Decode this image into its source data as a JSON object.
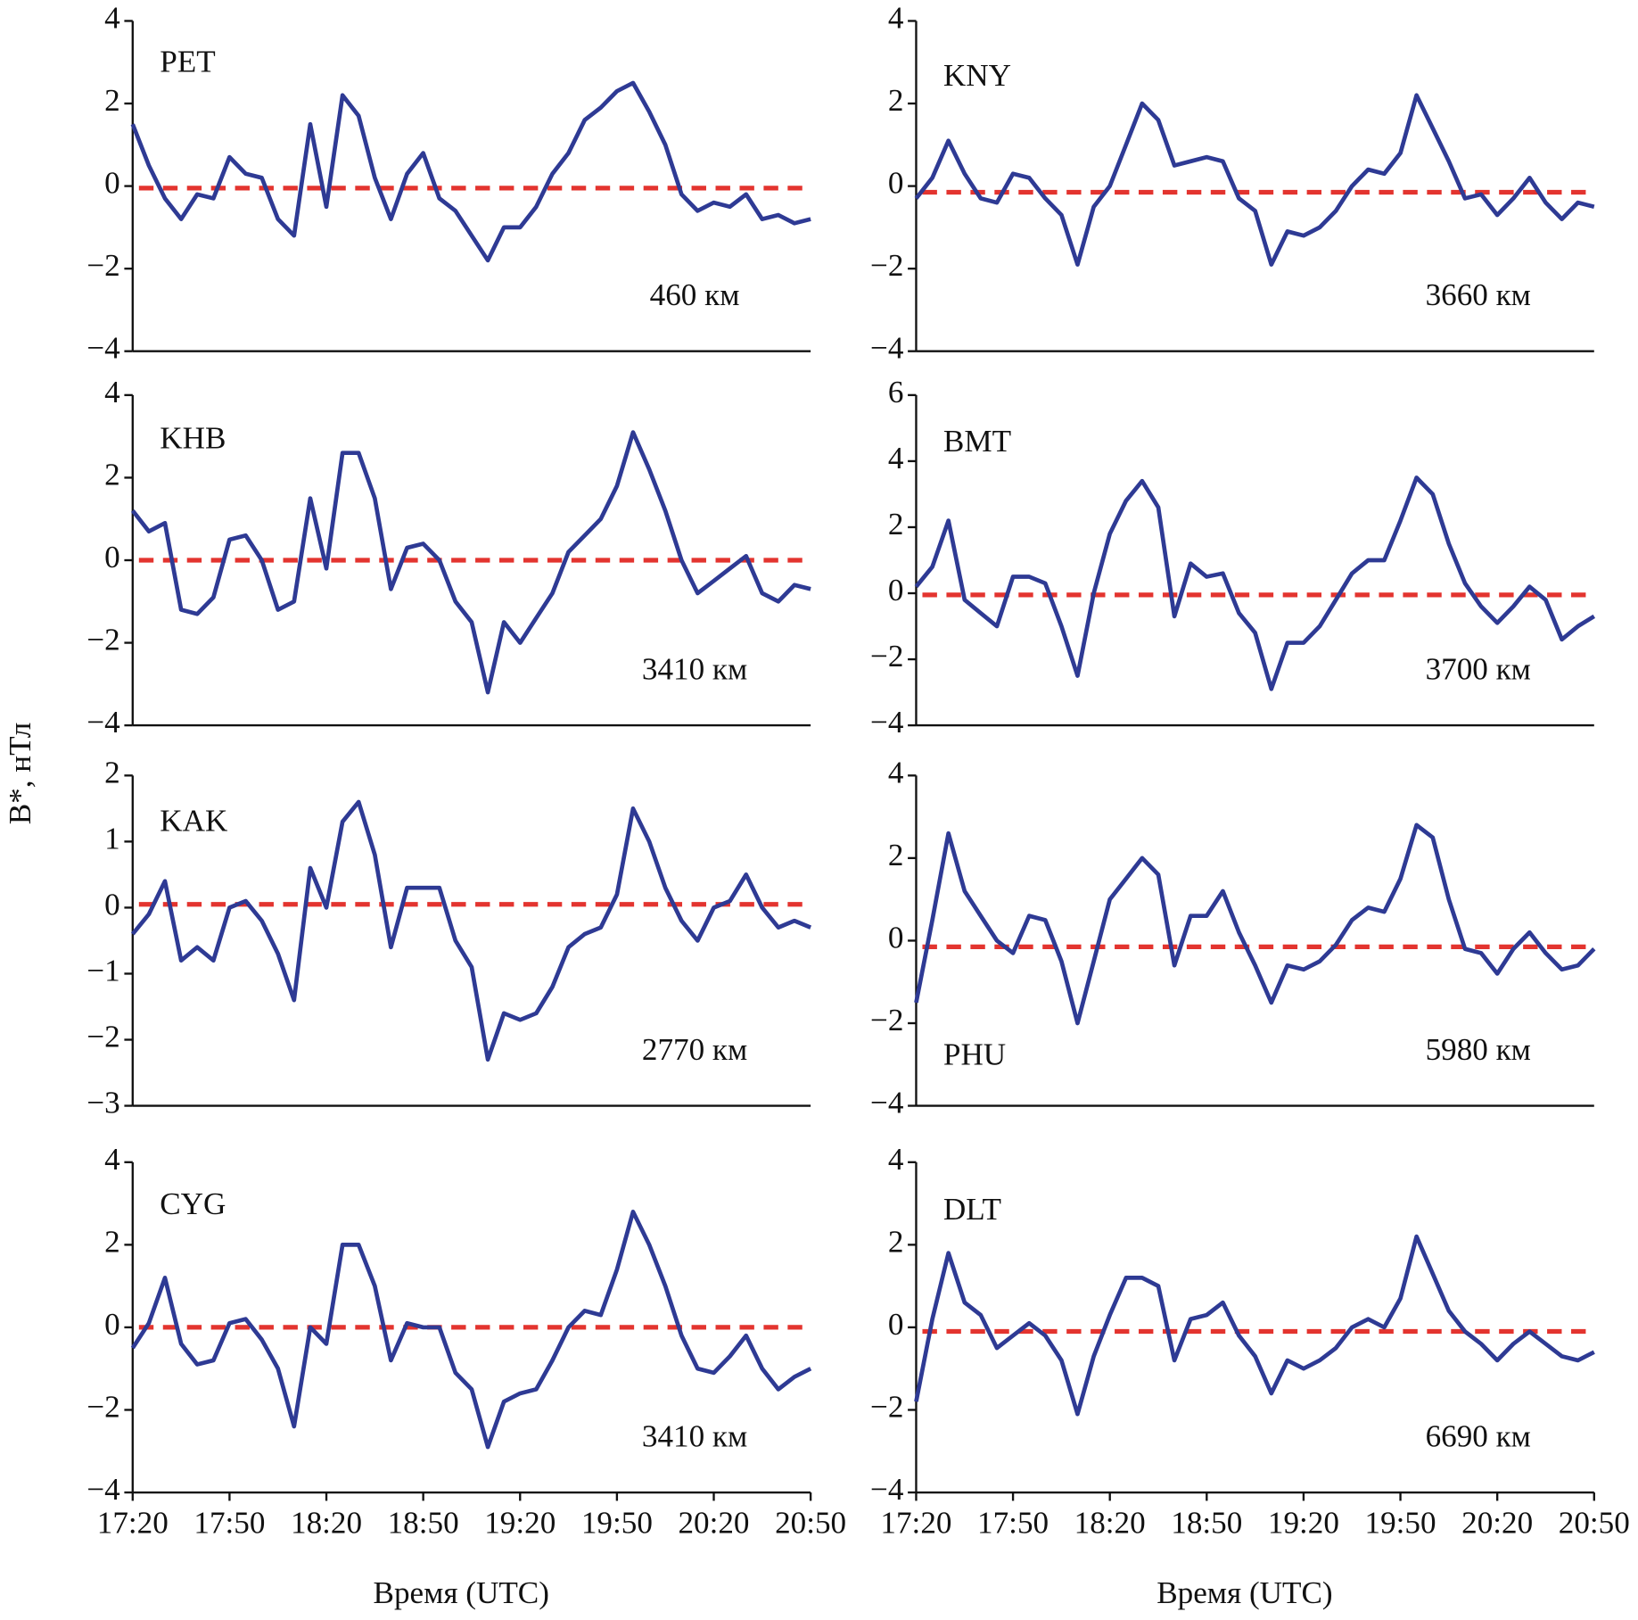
{
  "chart_data": [
    {
      "type": "line",
      "title": "PET",
      "annotation": "460 км",
      "color": "#2e3a94",
      "x": [
        1040,
        1045,
        1050,
        1055,
        1060,
        1065,
        1070,
        1075,
        1080,
        1085,
        1090,
        1095,
        1100,
        1105,
        1110,
        1115,
        1120,
        1125,
        1130,
        1135,
        1140,
        1145,
        1150,
        1155,
        1160,
        1165,
        1170,
        1175,
        1180,
        1185,
        1190,
        1195,
        1200,
        1205,
        1210,
        1215,
        1220,
        1225,
        1230,
        1235,
        1240,
        1245,
        1250
      ],
      "values": [
        1.5,
        0.5,
        -0.3,
        -0.8,
        -0.2,
        -0.3,
        0.7,
        0.3,
        0.2,
        -0.8,
        -1.2,
        1.5,
        -0.5,
        2.2,
        1.7,
        0.2,
        -0.8,
        0.3,
        0.8,
        -0.3,
        -0.6,
        -1.2,
        -1.8,
        -1.0,
        -1.0,
        -0.5,
        0.3,
        0.8,
        1.6,
        1.9,
        2.3,
        2.5,
        1.8,
        1.0,
        -0.2,
        -0.6,
        -0.4,
        -0.5,
        -0.2,
        -0.8,
        -0.7,
        -0.9,
        -0.8
      ],
      "reference_line": {
        "value": -0.05,
        "color": "#e3342f"
      },
      "xlim": [
        1040,
        1250
      ],
      "ylim": [
        -4,
        4
      ],
      "yticks": [
        4,
        2,
        0,
        {
          "value": -2,
          "label": "−2"
        },
        {
          "value": -4,
          "label": "−4"
        }
      ]
    },
    {
      "type": "line",
      "title": "KNY",
      "annotation": "3660 км",
      "color": "#2e3a94",
      "x": [
        1040,
        1045,
        1050,
        1055,
        1060,
        1065,
        1070,
        1075,
        1080,
        1085,
        1090,
        1095,
        1100,
        1105,
        1110,
        1115,
        1120,
        1125,
        1130,
        1135,
        1140,
        1145,
        1150,
        1155,
        1160,
        1165,
        1170,
        1175,
        1180,
        1185,
        1190,
        1195,
        1200,
        1205,
        1210,
        1215,
        1220,
        1225,
        1230,
        1235,
        1240,
        1245,
        1250
      ],
      "values": [
        -0.3,
        0.2,
        1.1,
        0.3,
        -0.3,
        -0.4,
        0.3,
        0.2,
        -0.3,
        -0.7,
        -1.9,
        -0.5,
        0.0,
        1.0,
        2.0,
        1.6,
        0.5,
        0.6,
        0.7,
        0.6,
        -0.3,
        -0.6,
        -1.9,
        -1.1,
        -1.2,
        -1.0,
        -0.6,
        0.0,
        0.4,
        0.3,
        0.8,
        2.2,
        1.4,
        0.6,
        -0.3,
        -0.2,
        -0.7,
        -0.3,
        0.2,
        -0.4,
        -0.8,
        -0.4,
        -0.5
      ],
      "reference_line": {
        "value": -0.15,
        "color": "#e3342f"
      },
      "xlim": [
        1040,
        1250
      ],
      "ylim": [
        -4,
        4
      ],
      "yticks": [
        4,
        2,
        0,
        {
          "value": -2,
          "label": "−2"
        },
        {
          "value": -4,
          "label": "−4"
        }
      ]
    },
    {
      "type": "line",
      "title": "KHB",
      "annotation": "3410 км",
      "color": "#2e3a94",
      "x": [
        1040,
        1045,
        1050,
        1055,
        1060,
        1065,
        1070,
        1075,
        1080,
        1085,
        1090,
        1095,
        1100,
        1105,
        1110,
        1115,
        1120,
        1125,
        1130,
        1135,
        1140,
        1145,
        1150,
        1155,
        1160,
        1165,
        1170,
        1175,
        1180,
        1185,
        1190,
        1195,
        1200,
        1205,
        1210,
        1215,
        1220,
        1225,
        1230,
        1235,
        1240,
        1245,
        1250
      ],
      "values": [
        1.2,
        0.7,
        0.9,
        -1.2,
        -1.3,
        -0.9,
        0.5,
        0.6,
        0.0,
        -1.2,
        -1.0,
        1.5,
        -0.2,
        2.6,
        2.6,
        1.5,
        -0.7,
        0.3,
        0.4,
        0.0,
        -1.0,
        -1.5,
        -3.2,
        -1.5,
        -2.0,
        -1.4,
        -0.8,
        0.2,
        0.6,
        1.0,
        1.8,
        3.1,
        2.2,
        1.2,
        0.0,
        -0.8,
        -0.5,
        -0.2,
        0.1,
        -0.8,
        -1.0,
        -0.6,
        -0.7
      ],
      "reference_line": {
        "value": 0,
        "color": "#e3342f"
      },
      "xlim": [
        1040,
        1250
      ],
      "ylim": [
        -4,
        4
      ],
      "yticks": [
        4,
        2,
        0,
        {
          "value": -2,
          "label": "−2"
        },
        {
          "value": -4,
          "label": "−4"
        }
      ]
    },
    {
      "type": "line",
      "title": "BMT",
      "annotation": "3700 км",
      "color": "#2e3a94",
      "x": [
        1040,
        1045,
        1050,
        1055,
        1060,
        1065,
        1070,
        1075,
        1080,
        1085,
        1090,
        1095,
        1100,
        1105,
        1110,
        1115,
        1120,
        1125,
        1130,
        1135,
        1140,
        1145,
        1150,
        1155,
        1160,
        1165,
        1170,
        1175,
        1180,
        1185,
        1190,
        1195,
        1200,
        1205,
        1210,
        1215,
        1220,
        1225,
        1230,
        1235,
        1240,
        1245,
        1250
      ],
      "values": [
        0.2,
        0.8,
        2.2,
        -0.2,
        -0.6,
        -1.0,
        0.5,
        0.5,
        0.3,
        -1.0,
        -2.5,
        0.0,
        1.8,
        2.8,
        3.4,
        2.6,
        -0.7,
        0.9,
        0.5,
        0.6,
        -0.6,
        -1.2,
        -2.9,
        -1.5,
        -1.5,
        -1.0,
        -0.2,
        0.6,
        1.0,
        1.0,
        2.2,
        3.5,
        3.0,
        1.5,
        0.3,
        -0.4,
        -0.9,
        -0.4,
        0.2,
        -0.2,
        -1.4,
        -1.0,
        -0.7
      ],
      "reference_line": {
        "value": -0.05,
        "color": "#e3342f"
      },
      "xlim": [
        1040,
        1250
      ],
      "ylim": [
        -4,
        6
      ],
      "yticks": [
        6,
        4,
        2,
        0,
        {
          "value": -2,
          "label": "−2"
        },
        {
          "value": -4,
          "label": "−4"
        }
      ]
    },
    {
      "type": "line",
      "title": "KAK",
      "annotation": "2770 км",
      "ylabel": "B*, нТл",
      "color": "#2e3a94",
      "x": [
        1040,
        1045,
        1050,
        1055,
        1060,
        1065,
        1070,
        1075,
        1080,
        1085,
        1090,
        1095,
        1100,
        1105,
        1110,
        1115,
        1120,
        1125,
        1130,
        1135,
        1140,
        1145,
        1150,
        1155,
        1160,
        1165,
        1170,
        1175,
        1180,
        1185,
        1190,
        1195,
        1200,
        1205,
        1210,
        1215,
        1220,
        1225,
        1230,
        1235,
        1240,
        1245,
        1250
      ],
      "values": [
        -0.4,
        -0.1,
        0.4,
        -0.8,
        -0.6,
        -0.8,
        0.0,
        0.1,
        -0.2,
        -0.7,
        -1.4,
        0.6,
        0.0,
        1.3,
        1.6,
        0.8,
        -0.6,
        0.3,
        0.3,
        0.3,
        -0.5,
        -0.9,
        -2.3,
        -1.6,
        -1.7,
        -1.6,
        -1.2,
        -0.6,
        -0.4,
        -0.3,
        0.2,
        1.5,
        1.0,
        0.3,
        -0.2,
        -0.5,
        0.0,
        0.1,
        0.5,
        0.0,
        -0.3,
        -0.2,
        -0.3
      ],
      "reference_line": {
        "value": 0.05,
        "color": "#e3342f"
      },
      "xlim": [
        1040,
        1250
      ],
      "ylim": [
        -3,
        2
      ],
      "yticks": [
        2,
        1,
        0,
        {
          "value": -1,
          "label": "−1"
        },
        {
          "value": -2,
          "label": "−2"
        },
        {
          "value": -3,
          "label": "−3"
        }
      ]
    },
    {
      "type": "line",
      "title": "PHU",
      "annotation": "5980 км",
      "color": "#2e3a94",
      "x": [
        1040,
        1045,
        1050,
        1055,
        1060,
        1065,
        1070,
        1075,
        1080,
        1085,
        1090,
        1095,
        1100,
        1105,
        1110,
        1115,
        1120,
        1125,
        1130,
        1135,
        1140,
        1145,
        1150,
        1155,
        1160,
        1165,
        1170,
        1175,
        1180,
        1185,
        1190,
        1195,
        1200,
        1205,
        1210,
        1215,
        1220,
        1225,
        1230,
        1235,
        1240,
        1245,
        1250
      ],
      "values": [
        -1.5,
        0.5,
        2.6,
        1.2,
        0.6,
        0.0,
        -0.3,
        0.6,
        0.5,
        -0.5,
        -2.0,
        -0.5,
        1.0,
        1.5,
        2.0,
        1.6,
        -0.6,
        0.6,
        0.6,
        1.2,
        0.2,
        -0.6,
        -1.5,
        -0.6,
        -0.7,
        -0.5,
        -0.1,
        0.5,
        0.8,
        0.7,
        1.5,
        2.8,
        2.5,
        1.0,
        -0.2,
        -0.3,
        -0.8,
        -0.2,
        0.2,
        -0.3,
        -0.7,
        -0.6,
        -0.2
      ],
      "reference_line": {
        "value": -0.15,
        "color": "#e3342f"
      },
      "xlim": [
        1040,
        1250
      ],
      "ylim": [
        -4,
        4
      ],
      "yticks": [
        4,
        2,
        0,
        {
          "value": -2,
          "label": "−2"
        },
        {
          "value": -4,
          "label": "−4"
        }
      ]
    },
    {
      "type": "line",
      "title": "CYG",
      "annotation": "3410 км",
      "xlabel": "Время (UTC)",
      "color": "#2e3a94",
      "x": [
        1040,
        1045,
        1050,
        1055,
        1060,
        1065,
        1070,
        1075,
        1080,
        1085,
        1090,
        1095,
        1100,
        1105,
        1110,
        1115,
        1120,
        1125,
        1130,
        1135,
        1140,
        1145,
        1150,
        1155,
        1160,
        1165,
        1170,
        1175,
        1180,
        1185,
        1190,
        1195,
        1200,
        1205,
        1210,
        1215,
        1220,
        1225,
        1230,
        1235,
        1240,
        1245,
        1250
      ],
      "values": [
        -0.5,
        0.1,
        1.2,
        -0.4,
        -0.9,
        -0.8,
        0.1,
        0.2,
        -0.3,
        -1.0,
        -2.4,
        0.0,
        -0.4,
        2.0,
        2.0,
        1.0,
        -0.8,
        0.1,
        0.0,
        0.0,
        -1.1,
        -1.5,
        -2.9,
        -1.8,
        -1.6,
        -1.5,
        -0.8,
        0.0,
        0.4,
        0.3,
        1.4,
        2.8,
        2.0,
        1.0,
        -0.2,
        -1.0,
        -1.1,
        -0.7,
        -0.2,
        -1.0,
        -1.5,
        -1.2,
        -1.0
      ],
      "reference_line": {
        "value": 0,
        "color": "#e3342f"
      },
      "xlim": [
        1040,
        1250
      ],
      "ylim": [
        -4,
        4
      ],
      "xticks": [
        {
          "value": 1040,
          "label": "17:20"
        },
        {
          "value": 1070,
          "label": "17:50"
        },
        {
          "value": 1100,
          "label": "18:20"
        },
        {
          "value": 1130,
          "label": "18:50"
        },
        {
          "value": 1160,
          "label": "19:20"
        },
        {
          "value": 1190,
          "label": "19:50"
        },
        {
          "value": 1220,
          "label": "20:20"
        },
        {
          "value": 1250,
          "label": "20:50"
        }
      ],
      "yticks": [
        4,
        2,
        0,
        {
          "value": -2,
          "label": "−2"
        },
        {
          "value": -4,
          "label": "−4"
        }
      ]
    },
    {
      "type": "line",
      "title": "DLT",
      "annotation": "6690 км",
      "xlabel": "Время (UTC)",
      "color": "#2e3a94",
      "x": [
        1040,
        1045,
        1050,
        1055,
        1060,
        1065,
        1070,
        1075,
        1080,
        1085,
        1090,
        1095,
        1100,
        1105,
        1110,
        1115,
        1120,
        1125,
        1130,
        1135,
        1140,
        1145,
        1150,
        1155,
        1160,
        1165,
        1170,
        1175,
        1180,
        1185,
        1190,
        1195,
        1200,
        1205,
        1210,
        1215,
        1220,
        1225,
        1230,
        1235,
        1240,
        1245,
        1250
      ],
      "values": [
        -1.8,
        0.2,
        1.8,
        0.6,
        0.3,
        -0.5,
        -0.2,
        0.1,
        -0.2,
        -0.8,
        -2.1,
        -0.7,
        0.3,
        1.2,
        1.2,
        1.0,
        -0.8,
        0.2,
        0.3,
        0.6,
        -0.2,
        -0.7,
        -1.6,
        -0.8,
        -1.0,
        -0.8,
        -0.5,
        0.0,
        0.2,
        0.0,
        0.7,
        2.2,
        1.3,
        0.4,
        -0.1,
        -0.4,
        -0.8,
        -0.4,
        -0.1,
        -0.4,
        -0.7,
        -0.8,
        -0.6
      ],
      "reference_line": {
        "value": -0.1,
        "color": "#e3342f"
      },
      "xlim": [
        1040,
        1250
      ],
      "ylim": [
        -4,
        4
      ],
      "xticks": [
        {
          "value": 1040,
          "label": "17:20"
        },
        {
          "value": 1070,
          "label": "17:50"
        },
        {
          "value": 1100,
          "label": "18:20"
        },
        {
          "value": 1130,
          "label": "18:50"
        },
        {
          "value": 1160,
          "label": "19:20"
        },
        {
          "value": 1190,
          "label": "19:50"
        },
        {
          "value": 1220,
          "label": "20:20"
        },
        {
          "value": 1250,
          "label": "20:50"
        }
      ],
      "yticks": [
        4,
        2,
        0,
        {
          "value": -2,
          "label": "−2"
        },
        {
          "value": -4,
          "label": "−4"
        }
      ]
    }
  ]
}
